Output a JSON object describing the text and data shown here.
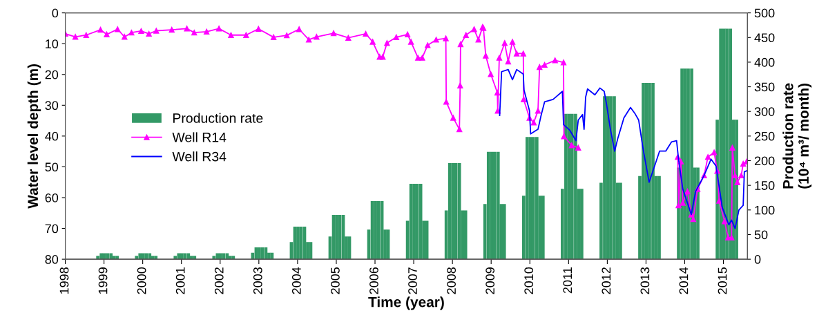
{
  "chart_data": {
    "type": "line",
    "xlabel": "Time (year)",
    "ylabel": "Water level depth (m)",
    "y2label": "Production rate\n(10⁴ m³/ month)",
    "xlim": [
      1998,
      2015.62
    ],
    "xticks": [
      1998,
      1999,
      2000,
      2001,
      2002,
      2003,
      2004,
      2005,
      2006,
      2007,
      2008,
      2009,
      2010,
      2011,
      2012,
      2013,
      2014,
      2015
    ],
    "ylim": [
      80,
      0
    ],
    "yticks": [
      0,
      10,
      20,
      30,
      40,
      50,
      60,
      70,
      80
    ],
    "y2lim": [
      0,
      500
    ],
    "y2ticks": [
      0,
      50,
      100,
      150,
      200,
      250,
      300,
      350,
      400,
      450,
      500
    ],
    "legend": "center left",
    "grid": false,
    "series": [
      {
        "name": "Production rate",
        "type": "bar",
        "axis": "y2",
        "color": "#339966",
        "x": [
          1998.84,
          1998.93,
          1999.01,
          1999.09,
          1999.18,
          1999.26,
          1999.34,
          1999.84,
          1999.93,
          2000.01,
          2000.09,
          2000.18,
          2000.26,
          2000.34,
          2000.84,
          2000.93,
          2001.01,
          2001.09,
          2001.18,
          2001.26,
          2001.34,
          2001.84,
          2001.93,
          2002.01,
          2002.09,
          2002.18,
          2002.26,
          2002.34,
          2002.84,
          2002.93,
          2003.01,
          2003.09,
          2003.18,
          2003.26,
          2003.34,
          2003.84,
          2003.93,
          2004.01,
          2004.09,
          2004.18,
          2004.26,
          2004.34,
          2004.84,
          2004.93,
          2005.01,
          2005.09,
          2005.18,
          2005.26,
          2005.34,
          2005.84,
          2005.93,
          2006.01,
          2006.09,
          2006.18,
          2006.26,
          2006.34,
          2006.84,
          2006.93,
          2007.01,
          2007.09,
          2007.18,
          2007.26,
          2007.34,
          2007.84,
          2007.93,
          2008.01,
          2008.09,
          2008.18,
          2008.26,
          2008.34,
          2008.84,
          2008.93,
          2009.01,
          2009.09,
          2009.18,
          2009.26,
          2009.34,
          2009.84,
          2009.93,
          2010.01,
          2010.09,
          2010.18,
          2010.26,
          2010.34,
          2010.84,
          2010.93,
          2011.01,
          2011.09,
          2011.18,
          2011.26,
          2011.34,
          2011.84,
          2011.93,
          2012.01,
          2012.09,
          2012.18,
          2012.26,
          2012.34,
          2012.84,
          2012.93,
          2013.01,
          2013.09,
          2013.18,
          2013.26,
          2013.34,
          2013.84,
          2013.93,
          2014.01,
          2014.09,
          2014.18,
          2014.26,
          2014.34,
          2014.84,
          2014.93,
          2015.01,
          2015.09,
          2015.18,
          2015.26,
          2015.34
        ],
        "values": [
          7,
          12,
          12,
          12,
          12,
          7,
          7,
          7,
          12,
          12,
          12,
          12,
          7,
          7,
          7,
          12,
          12,
          12,
          12,
          7,
          7,
          7,
          12,
          12,
          12,
          12,
          7,
          7,
          13,
          24,
          24,
          24,
          24,
          13,
          13,
          35,
          66,
          66,
          66,
          66,
          35,
          35,
          46,
          90,
          90,
          90,
          90,
          46,
          46,
          60,
          118,
          118,
          118,
          118,
          60,
          60,
          78,
          153,
          153,
          153,
          153,
          78,
          78,
          99,
          195,
          195,
          195,
          195,
          99,
          99,
          112,
          218,
          218,
          218,
          218,
          112,
          112,
          129,
          248,
          248,
          248,
          248,
          129,
          129,
          143,
          295,
          295,
          295,
          295,
          143,
          143,
          155,
          331,
          331,
          331,
          331,
          155,
          155,
          169,
          358,
          358,
          358,
          358,
          169,
          169,
          186,
          387,
          387,
          387,
          387,
          186,
          186,
          283,
          468,
          468,
          468,
          468,
          283,
          283
        ]
      },
      {
        "name": "Well R14",
        "color": "#ff00ff",
        "marker": "triangle",
        "x": [
          1998.0,
          1998.26,
          1998.54,
          1998.91,
          1999.07,
          1999.35,
          1999.53,
          1999.71,
          1999.96,
          2000.16,
          2000.35,
          2000.75,
          2001.14,
          2001.33,
          2001.65,
          2001.97,
          2002.28,
          2002.67,
          2002.99,
          2003.38,
          2003.72,
          2004.04,
          2004.29,
          2004.49,
          2004.93,
          2005.31,
          2005.76,
          2005.94,
          2006.12,
          2006.2,
          2006.31,
          2006.55,
          2006.84,
          2006.93,
          2007.11,
          2007.22,
          2007.36,
          2007.58,
          2007.83,
          2007.84,
          2008.02,
          2008.18,
          2008.2,
          2008.21,
          2008.35,
          2008.56,
          2008.67,
          2008.78,
          2008.8,
          2008.86,
          2008.99,
          2009.16,
          2009.17,
          2009.21,
          2009.35,
          2009.44,
          2009.55,
          2009.66,
          2009.83,
          2009.84,
          2009.99,
          2010.1,
          2010.21,
          2010.25,
          2010.38,
          2010.65,
          2010.87,
          2010.88,
          2011.08,
          2011.25,
          null,
          2013.82,
          2013.84,
          2013.9,
          2013.95,
          2014.07,
          2014.17,
          2014.22,
          2014.33,
          2014.5,
          2014.6,
          2014.76,
          2014.84,
          2014.89,
          2015.03,
          2015.12,
          2015.21,
          2015.23,
          2015.3,
          2015.36,
          2015.46,
          2015.51,
          2015.6
        ],
        "values": [
          6.8,
          7.8,
          7.2,
          5.5,
          7.0,
          5.3,
          7.8,
          6.4,
          5.9,
          6.8,
          5.8,
          5.5,
          5.1,
          6.4,
          6.1,
          5.1,
          7.2,
          7.2,
          5.2,
          7.9,
          7.3,
          5.3,
          8.7,
          7.8,
          6.6,
          8.1,
          6.8,
          9.4,
          14.3,
          14.3,
          9.8,
          7.9,
          7.0,
          9.4,
          14.6,
          14.6,
          10.5,
          8.7,
          8.3,
          28.9,
          34.1,
          37.8,
          23.6,
          10.2,
          7.2,
          5.3,
          8.7,
          4.6,
          4.9,
          13.9,
          19.9,
          25.9,
          31.8,
          14.6,
          9.8,
          15.8,
          9.4,
          13.2,
          13.2,
          28.1,
          34.1,
          35.6,
          31.8,
          17.6,
          16.9,
          15.4,
          16.1,
          40.1,
          43.0,
          43.8,
          null,
          46.8,
          62.5,
          48.3,
          61.7,
          58.0,
          65.5,
          67.0,
          57.2,
          52.8,
          46.8,
          45.3,
          51.3,
          61.0,
          67.7,
          73.0,
          73.0,
          43.8,
          52.8,
          55.0,
          52.8,
          49.0,
          48.3
        ]
      },
      {
        "name": "Well R34",
        "color": "#0000ff",
        "x": [
          2009.22,
          2009.27,
          2009.44,
          2009.55,
          2009.66,
          2009.83,
          2009.85,
          2009.99,
          2010.02,
          2010.21,
          2010.29,
          2010.38,
          2010.6,
          2010.84,
          2010.87,
          2011.03,
          2011.19,
          2011.25,
          2011.36,
          2011.4,
          2011.44,
          2011.49,
          2011.68,
          2011.81,
          2011.92,
          2011.98,
          2012.08,
          2012.19,
          2012.27,
          2012.43,
          2012.6,
          2012.71,
          2012.81,
          2012.92,
          2013.08,
          2013.18,
          2013.35,
          2013.51,
          2013.66,
          2013.79,
          2013.84,
          2013.95,
          2014.17,
          2014.28,
          2014.5,
          2014.68,
          2014.81,
          2014.97,
          2015.14,
          2015.21,
          2015.3,
          2015.4,
          2015.51,
          2015.54,
          2015.6
        ],
        "values": [
          33.3,
          19.1,
          18.4,
          21.7,
          18.4,
          19.9,
          25.1,
          31.8,
          39.3,
          37.8,
          33.3,
          28.9,
          28.1,
          25.5,
          36.3,
          38.1,
          41.5,
          34.8,
          33.0,
          37.8,
          27.4,
          24.7,
          26.6,
          24.4,
          25.5,
          29.6,
          37.8,
          44.9,
          40.8,
          34.1,
          30.7,
          32.6,
          34.8,
          43.8,
          55.0,
          51.3,
          44.9,
          44.9,
          41.9,
          41.5,
          47.5,
          57.2,
          65.5,
          58.0,
          52.8,
          47.5,
          49.8,
          63.2,
          68.8,
          67.3,
          70.0,
          64.0,
          62.5,
          51.6,
          51.3
        ]
      }
    ]
  }
}
